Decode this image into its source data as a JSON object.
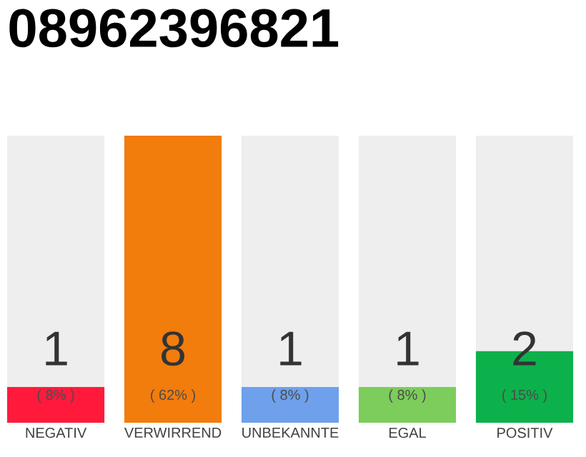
{
  "chart_data": {
    "type": "bar",
    "title": "08962396821",
    "stacked": true,
    "categories": [
      "NEGATIV",
      "VERWIRREND",
      "UNBEKANNTE",
      "EGAL",
      "POSITIV"
    ],
    "series": [
      {
        "colors": [
          "#ff1a3c",
          "#f27c0c",
          "#6ea0ec",
          "#7ccd5c",
          "#0db14b"
        ],
        "values": [
          1,
          8,
          1,
          1,
          2
        ],
        "value_labels": [
          "1",
          "8",
          "1",
          "1",
          "2"
        ]
      },
      {
        "color": "#eeeeee",
        "values": [
          7,
          0,
          7,
          7,
          6
        ]
      }
    ],
    "annotations": [
      "( 8% )",
      "( 62% )",
      "( 8% )",
      "( 8% )",
      "( 15% )"
    ],
    "ylim": [
      0,
      8
    ],
    "tick_labels": "x",
    "grid": false
  }
}
